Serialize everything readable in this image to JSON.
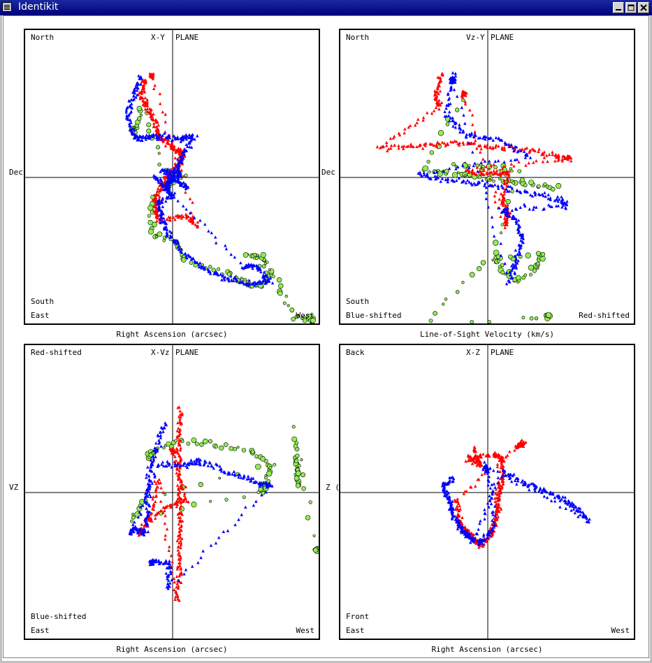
{
  "window": {
    "title": "Identikit"
  },
  "colors": {
    "red": "#ff0000",
    "blue": "#0000ff",
    "green": "#90ee50"
  },
  "panels": [
    {
      "id": "xy",
      "plane_label_left": "X-Y",
      "plane_label_right": "PLANE",
      "top_left": "North",
      "bottom_left_upper": "South",
      "bottom_left": "East",
      "bottom_right": "West",
      "ylabel": "Dec",
      "xlabel": "Right Ascension (arcsec)",
      "series": {
        "red": [
          [
            -40,
            -140
          ],
          [
            -45,
            -120
          ],
          [
            -35,
            -100
          ],
          [
            -25,
            -80
          ],
          [
            -20,
            -60
          ],
          [
            -5,
            -48
          ],
          [
            5,
            -40
          ],
          [
            15,
            -35
          ],
          [
            10,
            -20
          ],
          [
            -5,
            -5
          ],
          [
            -15,
            10
          ],
          [
            -25,
            30
          ],
          [
            -25,
            50
          ],
          [
            -20,
            60
          ],
          [
            20,
            55
          ],
          [
            35,
            68
          ],
          [
            -30,
            -145
          ]
        ],
        "blue": [
          [
            -45,
            -145
          ],
          [
            -55,
            -120
          ],
          [
            -65,
            -90
          ],
          [
            -55,
            -60
          ],
          [
            -45,
            -55
          ],
          [
            -20,
            -60
          ],
          [
            10,
            -55
          ],
          [
            30,
            -60
          ],
          [
            15,
            -30
          ],
          [
            5,
            -10
          ],
          [
            -5,
            5
          ],
          [
            -10,
            15
          ],
          [
            0,
            25
          ],
          [
            -20,
            35
          ],
          [
            -15,
            60
          ],
          [
            -5,
            85
          ],
          [
            20,
            110
          ],
          [
            50,
            135
          ],
          [
            80,
            145
          ],
          [
            110,
            152
          ],
          [
            140,
            147
          ],
          [
            120,
            127
          ],
          [
            100,
            127
          ],
          [
            -25,
            -1
          ],
          [
            -10,
            15
          ],
          [
            0,
            0
          ],
          [
            20,
            15
          ],
          [
            -15,
            -10
          ],
          [
            10,
            -5
          ]
        ],
        "green": [
          [
            -60,
            -75
          ],
          [
            -55,
            -60
          ],
          [
            -45,
            -100
          ],
          [
            -10,
            -10
          ],
          [
            15,
            -5
          ],
          [
            -30,
            30
          ],
          [
            -30,
            80
          ],
          [
            0,
            90
          ],
          [
            20,
            120
          ],
          [
            75,
            135
          ],
          [
            100,
            147
          ],
          [
            125,
            155
          ],
          [
            140,
            137
          ],
          [
            130,
            115
          ],
          [
            110,
            110
          ],
          [
            148,
            150
          ],
          [
            172,
            198
          ],
          [
            200,
            205
          ]
        ]
      }
    },
    {
      "id": "vzy",
      "plane_label_left": "Vz-Y",
      "plane_label_right": "PLANE",
      "top_left": "North",
      "bottom_left_upper": "South",
      "bottom_left": "Blue-shifted",
      "bottom_right": "Red-shifted",
      "ylabel": "Dec",
      "xlabel": "Line-of-Sight Velocity (km/s)",
      "series": {
        "red": [
          [
            -65,
            -150
          ],
          [
            -75,
            -120
          ],
          [
            -70,
            -100
          ],
          [
            -155,
            -42
          ],
          [
            -100,
            -45
          ],
          [
            -50,
            -50
          ],
          [
            0,
            -45
          ],
          [
            50,
            -40
          ],
          [
            100,
            -30
          ],
          [
            120,
            -28
          ],
          [
            -30,
            -10
          ],
          [
            0,
            -5
          ],
          [
            30,
            -8
          ],
          [
            20,
            30
          ],
          [
            30,
            50
          ],
          [
            25,
            70
          ],
          [
            -35,
            -120
          ]
        ],
        "blue": [
          [
            -50,
            -150
          ],
          [
            -60,
            -90
          ],
          [
            -30,
            -60
          ],
          [
            15,
            -55
          ],
          [
            60,
            -30
          ],
          [
            -100,
            -5
          ],
          [
            -50,
            5
          ],
          [
            0,
            10
          ],
          [
            50,
            20
          ],
          [
            100,
            30
          ],
          [
            115,
            40
          ],
          [
            20,
            45
          ],
          [
            40,
            60
          ],
          [
            50,
            90
          ],
          [
            40,
            120
          ],
          [
            30,
            150
          ],
          [
            -50,
            -140
          ]
        ],
        "green": [
          [
            -40,
            -110
          ],
          [
            -90,
            -10
          ],
          [
            -60,
            -5
          ],
          [
            -20,
            -2
          ],
          [
            20,
            5
          ],
          [
            60,
            10
          ],
          [
            100,
            15
          ],
          [
            -50,
            -20
          ],
          [
            0,
            -15
          ],
          [
            40,
            -10
          ],
          [
            10,
            110
          ],
          [
            20,
            130
          ],
          [
            40,
            150
          ],
          [
            70,
            130
          ],
          [
            80,
            110
          ],
          [
            -5,
            120
          ],
          [
            -85,
            205
          ],
          [
            15,
            208
          ],
          [
            88,
            198
          ]
        ]
      }
    },
    {
      "id": "xvz",
      "plane_label_left": "X-Vz",
      "plane_label_right": "PLANE",
      "top_left": "Red-shifted",
      "bottom_left_upper": "Blue-shifted",
      "bottom_left": "East",
      "bottom_right": "West",
      "ylabel": "VZ",
      "xlabel": "Right Ascension (arcsec)",
      "series": {
        "red": [
          [
            10,
            -120
          ],
          [
            10,
            -80
          ],
          [
            10,
            -40
          ],
          [
            10,
            0
          ],
          [
            10,
            40
          ],
          [
            10,
            80
          ],
          [
            10,
            120
          ],
          [
            5,
            155
          ],
          [
            -20,
            -20
          ],
          [
            -30,
            30
          ],
          [
            -50,
            60
          ],
          [
            -10,
            20
          ],
          [
            20,
            10
          ],
          [
            0,
            -60
          ]
        ],
        "blue": [
          [
            -10,
            -100
          ],
          [
            -25,
            -60
          ],
          [
            -35,
            -20
          ],
          [
            -35,
            20
          ],
          [
            -40,
            60
          ],
          [
            -55,
            50
          ],
          [
            -60,
            60
          ],
          [
            -20,
            -40
          ],
          [
            20,
            -40
          ],
          [
            40,
            -45
          ],
          [
            80,
            -30
          ],
          [
            120,
            -15
          ],
          [
            140,
            -10
          ],
          [
            -5,
            140
          ],
          [
            -5,
            100
          ],
          [
            -30,
            100
          ]
        ],
        "green": [
          [
            -35,
            -50
          ],
          [
            -25,
            -60
          ],
          [
            10,
            -75
          ],
          [
            60,
            -70
          ],
          [
            110,
            -60
          ],
          [
            140,
            -40
          ],
          [
            135,
            -15
          ],
          [
            125,
            0
          ],
          [
            -60,
            40
          ],
          [
            -40,
            10
          ],
          [
            175,
            -50
          ],
          [
            180,
            -30
          ],
          [
            180,
            -10
          ],
          [
            173,
            -90
          ],
          [
            205,
            82
          ]
        ]
      }
    },
    {
      "id": "xz",
      "plane_label_left": "X-Z",
      "plane_label_right": "PLANE",
      "top_left": "Back",
      "bottom_left_upper": "Front",
      "bottom_left": "East",
      "bottom_right": "West",
      "ylabel": "Z (",
      "xlabel": "Right Ascension (arcsec)",
      "series": {
        "red": [
          [
            -20,
            -65
          ],
          [
            -10,
            -40
          ],
          [
            -30,
            -50
          ],
          [
            10,
            -55
          ],
          [
            20,
            -50
          ],
          [
            20,
            -20
          ],
          [
            15,
            0
          ],
          [
            15,
            20
          ],
          [
            10,
            40
          ],
          [
            5,
            60
          ],
          [
            -10,
            75
          ],
          [
            -20,
            65
          ],
          [
            -30,
            55
          ],
          [
            -40,
            40
          ],
          [
            -45,
            10
          ],
          [
            40,
            -65
          ],
          [
            50,
            -70
          ]
        ],
        "blue": [
          [
            -50,
            -20
          ],
          [
            -65,
            -10
          ],
          [
            -55,
            10
          ],
          [
            -50,
            30
          ],
          [
            -40,
            50
          ],
          [
            -30,
            60
          ],
          [
            -20,
            70
          ],
          [
            20,
            -30
          ],
          [
            50,
            -15
          ],
          [
            80,
            -5
          ],
          [
            110,
            10
          ],
          [
            130,
            25
          ],
          [
            145,
            40
          ],
          [
            -5,
            -40
          ],
          [
            0,
            -30
          ],
          [
            10,
            50
          ],
          [
            -10,
            70
          ]
        ],
        "green": []
      }
    }
  ]
}
